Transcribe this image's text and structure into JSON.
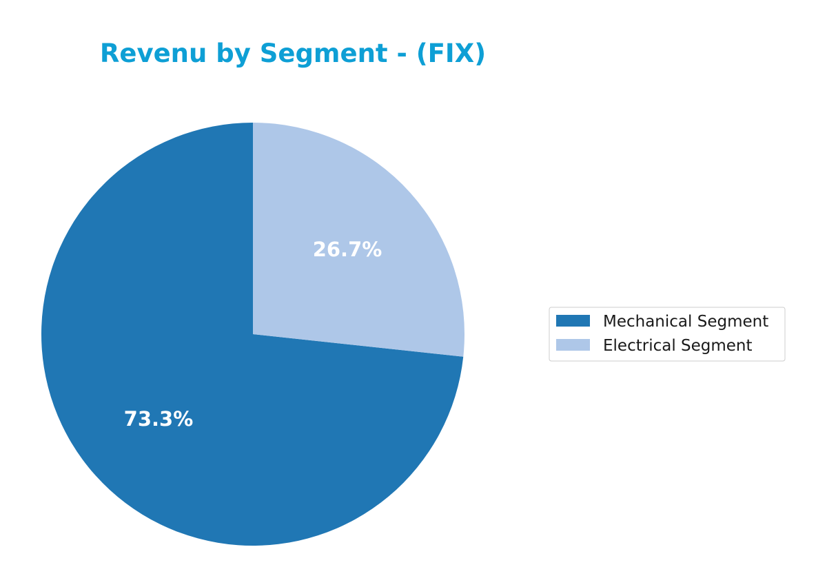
{
  "chart_data": {
    "type": "pie",
    "title": "Revenu by Segment - (FIX)",
    "title_color": "#0e9fd5",
    "categories": [
      "Mechanical Segment",
      "Electrical Segment"
    ],
    "values": [
      73.3,
      26.7
    ],
    "labels": [
      "73.3%",
      "26.7%"
    ],
    "colors": [
      "#2077b4",
      "#aec7e8"
    ],
    "start_angle_deg": 90,
    "direction": "clockwise-from-top for second slice",
    "legend": {
      "placement": "right",
      "entries": [
        "Mechanical Segment",
        "Electrical Segment"
      ]
    }
  }
}
